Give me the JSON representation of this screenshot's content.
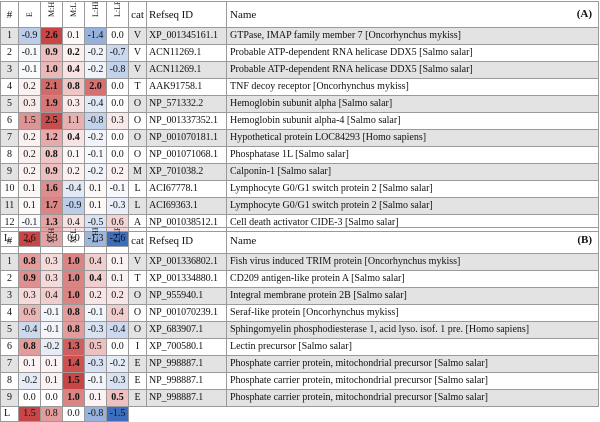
{
  "headers": {
    "hash": "#",
    "cat": "cat",
    "refseq": "Refseq ID",
    "name": "Name",
    "l_label": "L"
  },
  "columns": [
    "E",
    "M:HR",
    "M:LR",
    "L:HR",
    "L:LR"
  ],
  "colors": {
    "red_scale": "#c0504d",
    "blue_scale": "#4f81bd",
    "shade": "#e3e3e3",
    "grid": "#9a9a9a"
  },
  "panel_a": {
    "label": "(A)",
    "rows": [
      {
        "n": "1",
        "vals": [
          "-0.9",
          "2.6",
          "0.1",
          "-1.4",
          "0.0"
        ],
        "bold": [
          false,
          true,
          false,
          false,
          false
        ],
        "cat": "V",
        "ref": "XP_001345161.1",
        "name": "GTPase, IMAP family member 7 [Oncorhynchus mykiss]"
      },
      {
        "n": "2",
        "vals": [
          "-0.1",
          "0.9",
          "0.2",
          "-0.2",
          "-0.7"
        ],
        "bold": [
          false,
          true,
          true,
          false,
          false
        ],
        "cat": "V",
        "ref": "ACN11269.1",
        "name": "Probable ATP-dependent RNA helicase DDX5 [Salmo salar]"
      },
      {
        "n": "3",
        "vals": [
          "-0.1",
          "1.0",
          "0.4",
          "-0.2",
          "-0.8"
        ],
        "bold": [
          false,
          true,
          true,
          false,
          false
        ],
        "cat": "V",
        "ref": "ACN11269.1",
        "name": "Probable ATP-dependent RNA helicase DDX5 [Salmo salar]"
      },
      {
        "n": "4",
        "vals": [
          "0.2",
          "2.1",
          "0.8",
          "2.0",
          "0.0"
        ],
        "bold": [
          false,
          true,
          true,
          true,
          false
        ],
        "cat": "T",
        "ref": "AAK91758.1",
        "name": "TNF decoy receptor [Oncorhynchus mykiss]"
      },
      {
        "n": "5",
        "vals": [
          "0.3",
          "1.9",
          "0.3",
          "-0.4",
          "0.0"
        ],
        "bold": [
          false,
          true,
          false,
          false,
          false
        ],
        "cat": "O",
        "ref": "NP_571332.2",
        "name": "Hemoglobin subunit alpha [Salmo salar]"
      },
      {
        "n": "6",
        "vals": [
          "1.5",
          "2.5",
          "1.1",
          "-0.8",
          "0.3"
        ],
        "bold": [
          false,
          true,
          false,
          false,
          false
        ],
        "cat": "O",
        "ref": "NP_001337352.1",
        "name": "Hemoglobin subunit alpha-4 [Salmo salar]"
      },
      {
        "n": "7",
        "vals": [
          "0.2",
          "1.2",
          "0.4",
          "-0.2",
          "0.0"
        ],
        "bold": [
          false,
          true,
          true,
          false,
          false
        ],
        "cat": "O",
        "ref": "NP_001070181.1",
        "name": "Hypothetical protein LOC84293 [Homo sapiens]"
      },
      {
        "n": "8",
        "vals": [
          "0.2",
          "0.8",
          "0.1",
          "-0.1",
          "0.0"
        ],
        "bold": [
          false,
          true,
          false,
          false,
          false
        ],
        "cat": "O",
        "ref": "NP_001071068.1",
        "name": "Phosphatase 1L [Salmo salar]"
      },
      {
        "n": "9",
        "vals": [
          "0.2",
          "0.9",
          "0.2",
          "-0.2",
          "0.2"
        ],
        "bold": [
          false,
          true,
          false,
          false,
          false
        ],
        "cat": "M",
        "ref": "XP_701038.2",
        "name": "Calponin-1 [Salmo salar]"
      },
      {
        "n": "10",
        "vals": [
          "0.1",
          "1.6",
          "-0.4",
          "0.1",
          "-0.1"
        ],
        "bold": [
          false,
          true,
          false,
          false,
          false
        ],
        "cat": "L",
        "ref": "ACI67778.1",
        "name": "Lymphocyte G0/G1 switch protein 2 [Salmo salar]"
      },
      {
        "n": "11",
        "vals": [
          "0.1",
          "1.7",
          "-0.9",
          "0.1",
          "-0.3"
        ],
        "bold": [
          false,
          true,
          false,
          false,
          false
        ],
        "cat": "L",
        "ref": "ACI69363.1",
        "name": "Lymphocyte G0/G1 switch protein 2 [Salmo salar]"
      },
      {
        "n": "12",
        "vals": [
          "-0.1",
          "1.3",
          "0.4",
          "-0.5",
          "0.6"
        ],
        "bold": [
          false,
          true,
          false,
          false,
          false
        ],
        "cat": "A",
        "ref": "NP_001038512.1",
        "name": "Cell death activator CIDE-3 [Salmo salar]"
      }
    ],
    "l_vals": [
      "2.6",
      "1.3",
      "0.0",
      "-1.3",
      "-2.6"
    ]
  },
  "panel_b": {
    "label": "(B)",
    "rows": [
      {
        "n": "1",
        "vals": [
          "0.8",
          "0.3",
          "1.0",
          "0.4",
          "0.1"
        ],
        "bold": [
          true,
          false,
          true,
          false,
          false
        ],
        "cat": "V",
        "ref": "XP_001336802.1",
        "name": "Fish virus induced TRIM protein [Oncorhynchus mykiss]"
      },
      {
        "n": "2",
        "vals": [
          "0.9",
          "0.3",
          "1.0",
          "0.4",
          "0.1"
        ],
        "bold": [
          true,
          false,
          true,
          true,
          false
        ],
        "cat": "T",
        "ref": "XP_001334880.1",
        "name": "CD209 antigen-like protein A [Salmo salar]"
      },
      {
        "n": "3",
        "vals": [
          "0.3",
          "0.4",
          "1.0",
          "0.2",
          "0.2"
        ],
        "bold": [
          false,
          false,
          true,
          false,
          false
        ],
        "cat": "O",
        "ref": "NP_955940.1",
        "name": "Integral membrane protein 2B [Salmo salar]"
      },
      {
        "n": "4",
        "vals": [
          "0.6",
          "-0.1",
          "0.8",
          "-0.1",
          "0.4"
        ],
        "bold": [
          false,
          false,
          true,
          false,
          false
        ],
        "cat": "O",
        "ref": "NP_001070239.1",
        "name": "Seraf-like protein [Oncorhynchus mykiss]"
      },
      {
        "n": "5",
        "vals": [
          "-0.4",
          "-0.1",
          "0.8",
          "-0.3",
          "-0.4"
        ],
        "bold": [
          false,
          false,
          true,
          false,
          false
        ],
        "cat": "O",
        "ref": "XP_683907.1",
        "name": "Sphingomyelin phosphodiesterase 1, acid lyso. isof. 1 pre. [Homo sapiens]"
      },
      {
        "n": "6",
        "vals": [
          "0.8",
          "-0.2",
          "1.3",
          "0.5",
          "0.0"
        ],
        "bold": [
          true,
          false,
          true,
          false,
          false
        ],
        "cat": "I",
        "ref": "XP_700580.1",
        "name": "Lectin precursor [Salmo salar]"
      },
      {
        "n": "7",
        "vals": [
          "0.1",
          "0.1",
          "1.4",
          "-0.3",
          "-0.2"
        ],
        "bold": [
          false,
          false,
          true,
          false,
          false
        ],
        "cat": "E",
        "ref": "NP_998887.1",
        "name": "Phosphate carrier protein, mitochondrial precursor [Salmo salar]"
      },
      {
        "n": "8",
        "vals": [
          "-0.2",
          "0.1",
          "1.5",
          "-0.1",
          "-0.3"
        ],
        "bold": [
          false,
          false,
          true,
          false,
          false
        ],
        "cat": "E",
        "ref": "NP_998887.1",
        "name": "Phosphate carrier protein, mitochondrial precursor [Salmo salar]"
      },
      {
        "n": "9",
        "vals": [
          "0.0",
          "0.0",
          "1.0",
          "0.1",
          "0.5"
        ],
        "bold": [
          false,
          false,
          true,
          false,
          true
        ],
        "cat": "E",
        "ref": "NP_998887.1",
        "name": "Phosphate carrier protein, mitochondrial precursor [Salmo salar]"
      }
    ],
    "l_vals": [
      "1.5",
      "0.8",
      "0.0",
      "-0.8",
      "-1.5"
    ]
  }
}
